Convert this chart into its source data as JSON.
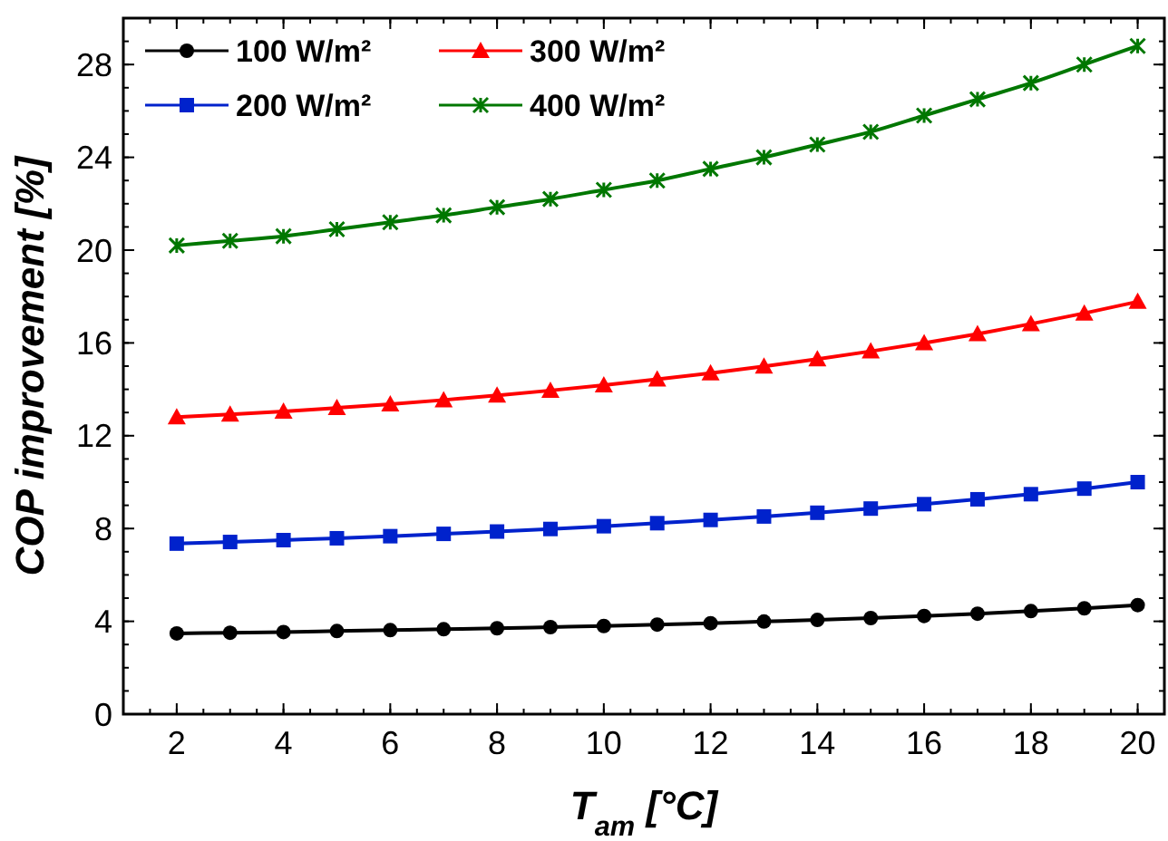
{
  "chart_data": {
    "type": "line",
    "xlabel": "T$_{am}$ [°C]",
    "ylabel": "COP improvement [%]",
    "x": [
      2,
      3,
      4,
      5,
      6,
      7,
      8,
      9,
      10,
      11,
      12,
      13,
      14,
      15,
      16,
      17,
      18,
      19,
      20
    ],
    "xlim": [
      1,
      20.5
    ],
    "xticks": [
      2,
      4,
      6,
      8,
      10,
      12,
      14,
      16,
      18,
      20
    ],
    "ylim": [
      0,
      30
    ],
    "yticks": [
      0,
      4,
      8,
      12,
      16,
      20,
      24,
      28
    ],
    "grid": false,
    "legend": "top left",
    "line_style": "solid",
    "series": [
      {
        "name": "100 W/m²",
        "color": "#000000",
        "marker": "circle",
        "values": [
          3.48,
          3.51,
          3.54,
          3.58,
          3.62,
          3.66,
          3.7,
          3.75,
          3.8,
          3.86,
          3.92,
          3.99,
          4.06,
          4.14,
          4.23,
          4.33,
          4.44,
          4.56,
          4.7
        ]
      },
      {
        "name": "200 W/m²",
        "color": "#0022cc",
        "marker": "square",
        "values": [
          7.35,
          7.42,
          7.5,
          7.58,
          7.67,
          7.77,
          7.87,
          7.98,
          8.1,
          8.23,
          8.37,
          8.52,
          8.68,
          8.86,
          9.05,
          9.26,
          9.48,
          9.72,
          10.0
        ]
      },
      {
        "name": "300 W/m²",
        "color": "#ff0000",
        "marker": "triangle",
        "values": [
          12.8,
          12.92,
          13.05,
          13.2,
          13.36,
          13.54,
          13.74,
          13.95,
          14.18,
          14.43,
          14.7,
          14.99,
          15.3,
          15.64,
          16.0,
          16.39,
          16.82,
          17.28,
          17.78
        ]
      },
      {
        "name": "400 W/m²",
        "color": "#007700",
        "marker": "cross",
        "values": [
          20.2,
          20.4,
          20.6,
          20.9,
          21.2,
          21.5,
          21.85,
          22.2,
          22.6,
          23.0,
          23.5,
          24.0,
          24.55,
          25.1,
          25.8,
          26.5,
          27.2,
          28.0,
          28.8
        ]
      }
    ]
  }
}
